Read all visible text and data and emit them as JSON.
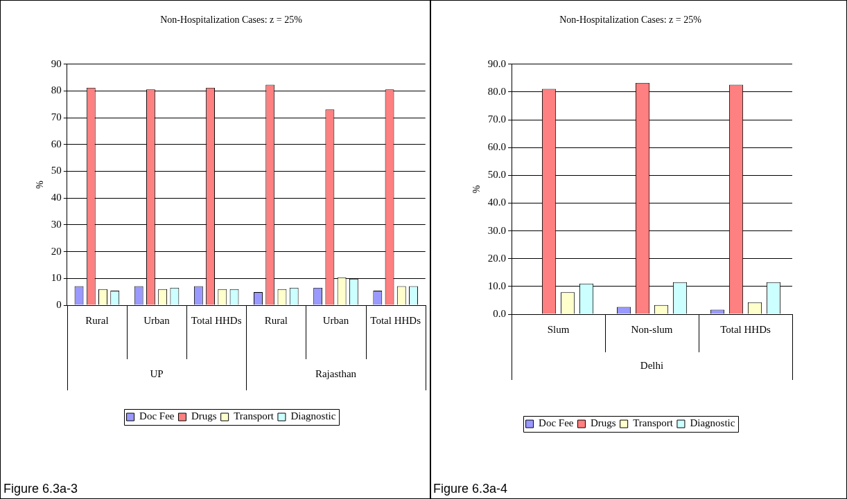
{
  "chart_data": [
    {
      "type": "bar",
      "title": "Non-Hospitalization Cases: z = 25%",
      "ylabel": "%",
      "categories": [
        "Rural",
        "Urban",
        "Total HHDs",
        "Rural",
        "Urban",
        "Total HHDs"
      ],
      "series": [
        {
          "name": "Doc Fee",
          "color": "#9999ff",
          "values": [
            7.1,
            7.1,
            7.1,
            4.9,
            6.5,
            5.4
          ]
        },
        {
          "name": "Drugs",
          "color": "#ff8080",
          "values": [
            81.2,
            80.6,
            81.2,
            82.3,
            73.1,
            80.6
          ]
        },
        {
          "name": "Transport",
          "color": "#ffffcc",
          "values": [
            6.0,
            6.0,
            6.0,
            6.0,
            10.4,
            7.1
          ]
        },
        {
          "name": "Diagnostic",
          "color": "#ccffff",
          "values": [
            5.4,
            6.5,
            6.0,
            6.5,
            9.9,
            7.1
          ]
        }
      ],
      "ylim": [
        0,
        90
      ],
      "yticks": [
        0,
        10,
        20,
        30,
        40,
        50,
        60,
        70,
        80,
        90
      ],
      "grid": "y",
      "legend": "bottom",
      "annotations": [
        "UP",
        "Rajasthan",
        "Figure 6.3a-3"
      ]
    },
    {
      "type": "bar",
      "title": "Non-Hospitalization Cases: z = 25%",
      "ylabel": "%",
      "categories": [
        "Slum",
        "Non-slum",
        "Total HHDs"
      ],
      "series": [
        {
          "name": "Doc Fee",
          "color": "#9999ff",
          "values": [
            0,
            2.6,
            1.6
          ]
        },
        {
          "name": "Drugs",
          "color": "#ff8080",
          "values": [
            81.1,
            83.3,
            82.6
          ]
        },
        {
          "name": "Transport",
          "color": "#ffffcc",
          "values": [
            7.9,
            3.3,
            4.3
          ]
        },
        {
          "name": "Diagnostic",
          "color": "#ccffff",
          "values": [
            11.0,
            11.5,
            11.5
          ]
        }
      ],
      "ylim": [
        0,
        90
      ],
      "yticks": [
        {
          "value": 0,
          "label": "0.0"
        },
        {
          "value": 10,
          "label": "10.0"
        },
        {
          "value": 20,
          "label": "20.0"
        },
        {
          "value": 30,
          "label": "30.0"
        },
        {
          "value": 40,
          "label": "40.0"
        },
        {
          "value": 50,
          "label": "50.0"
        },
        {
          "value": 60,
          "label": "60.0"
        },
        {
          "value": 70,
          "label": "70.0"
        },
        {
          "value": 80,
          "label": "80.0"
        },
        {
          "value": 90,
          "label": "90.0"
        }
      ],
      "grid": "y",
      "legend": "bottom",
      "annotations": [
        "Delhi",
        "Figure 6.3a-4"
      ]
    }
  ]
}
